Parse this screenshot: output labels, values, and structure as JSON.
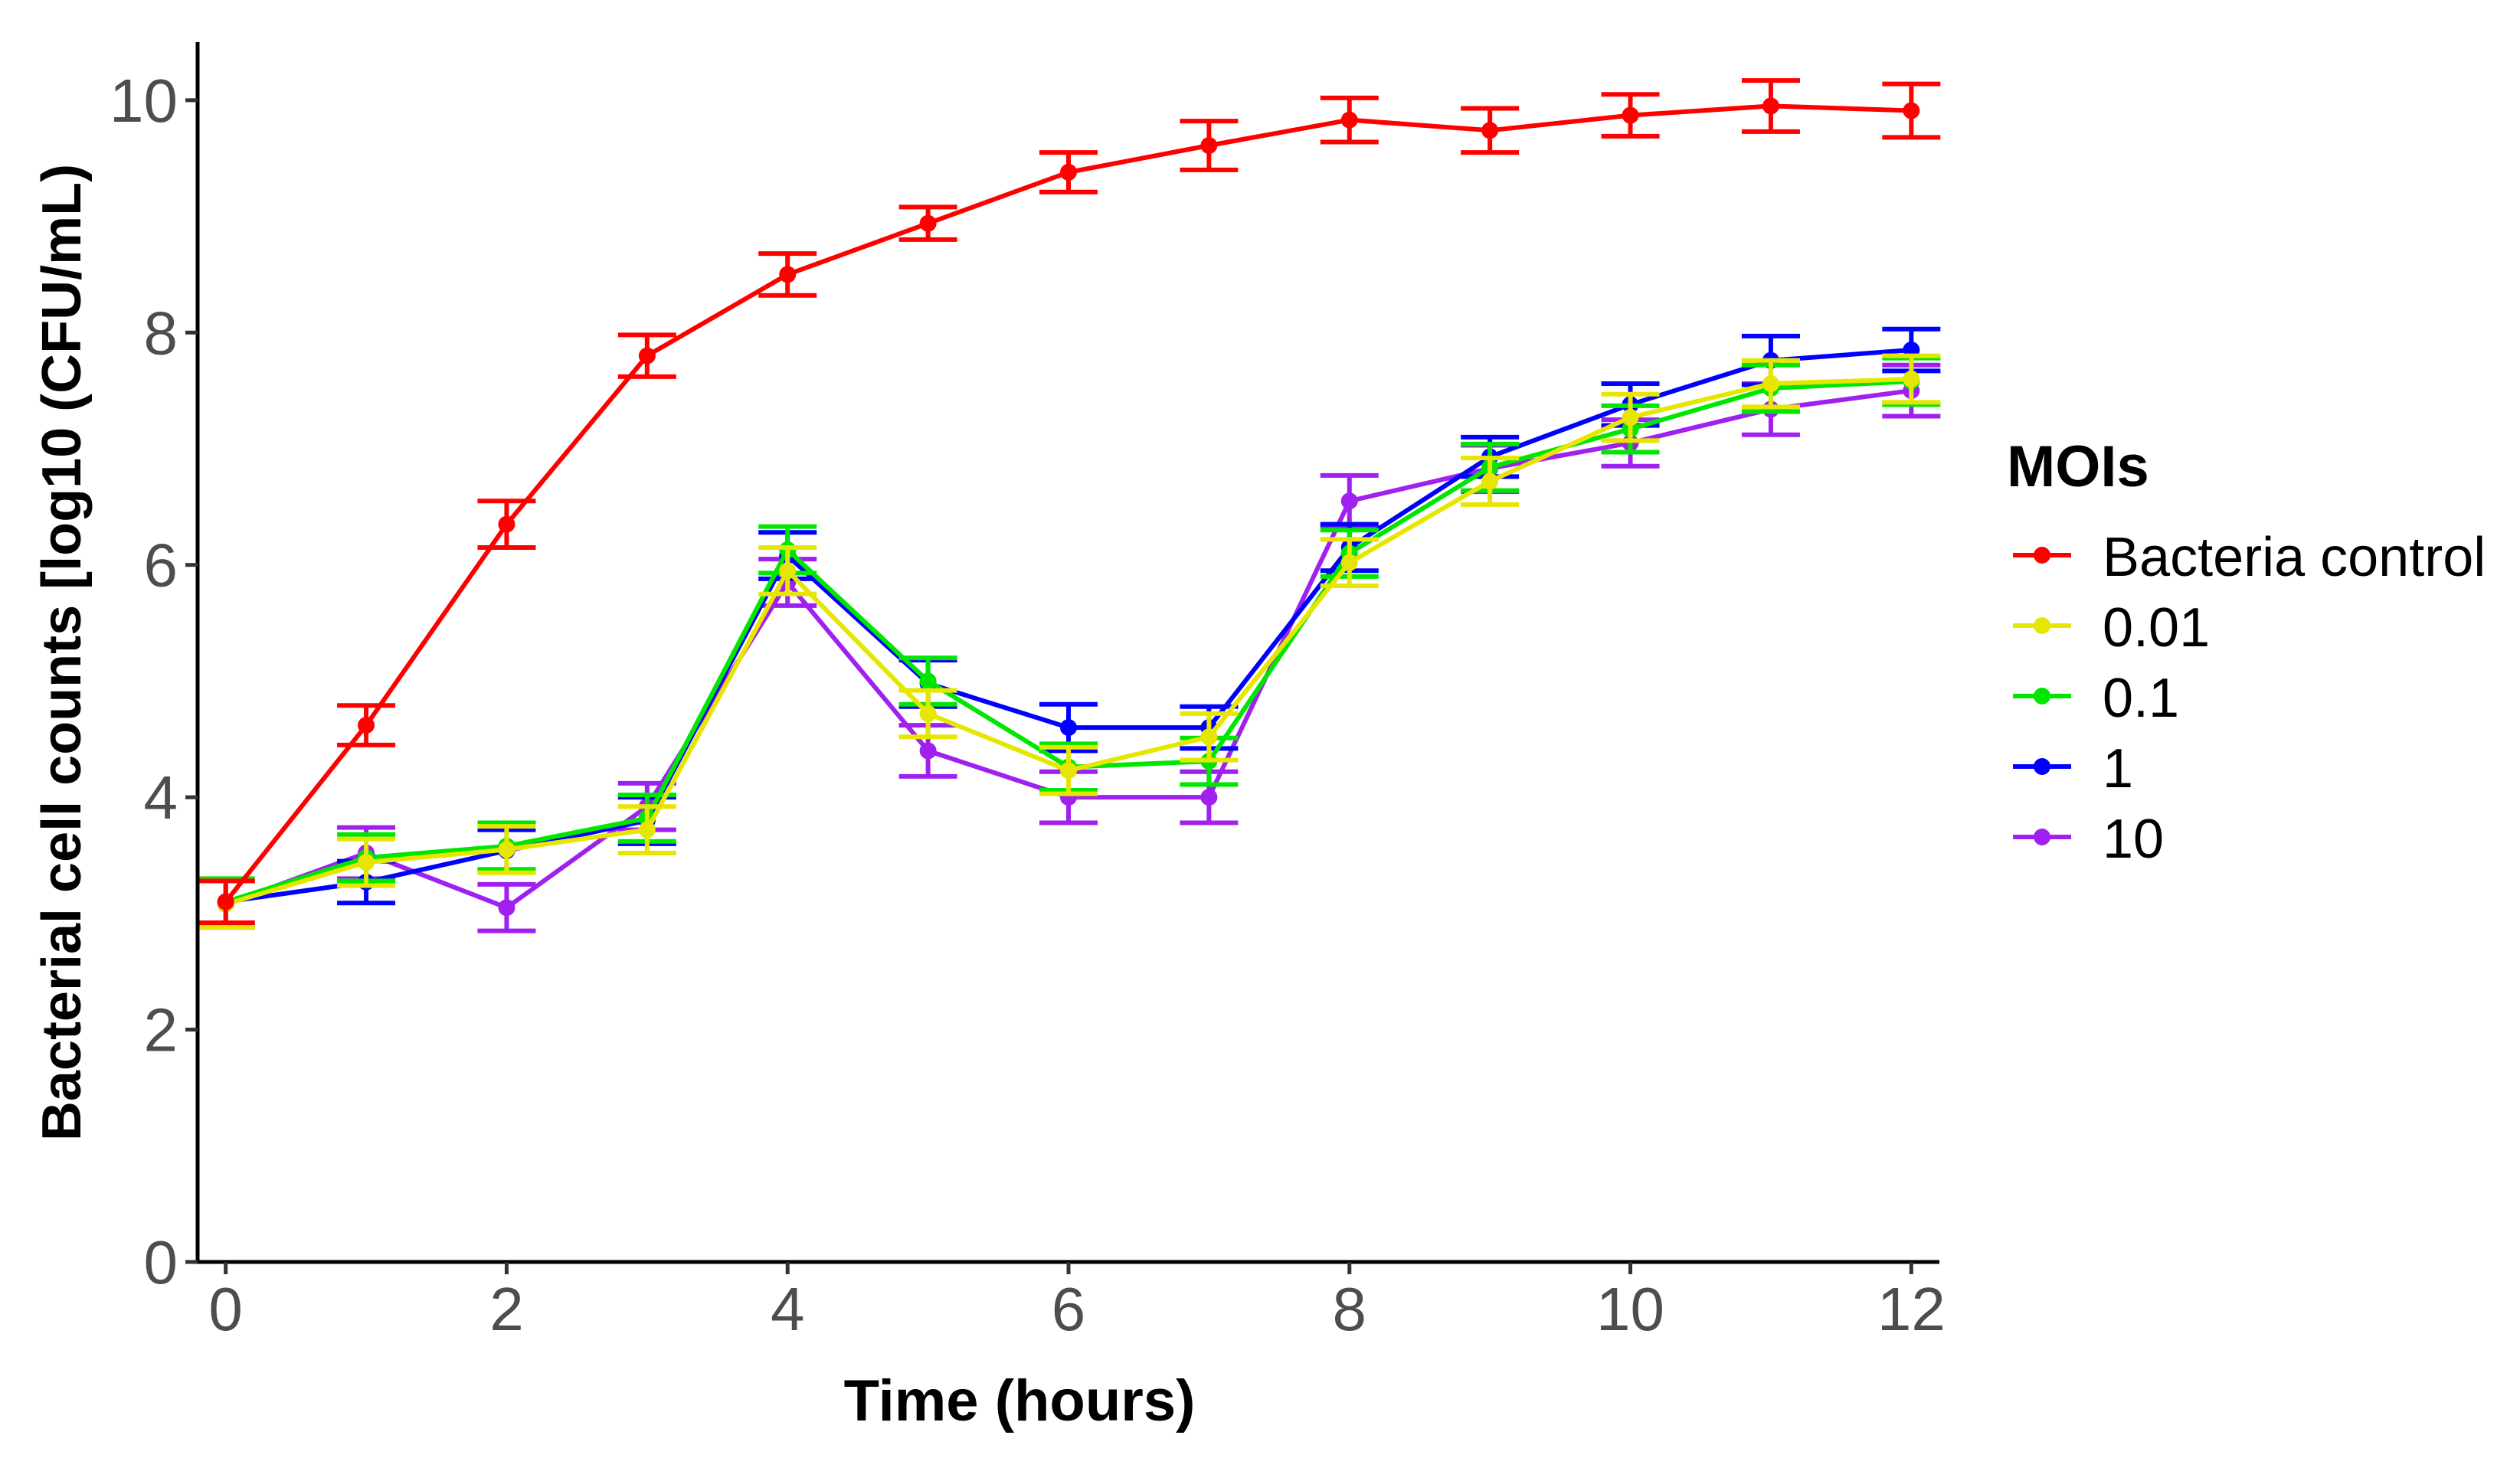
{
  "chart_data": {
    "type": "line",
    "title": "",
    "xlabel": "Time (hours)",
    "ylabel": "Bacterial cell counts [log10 (CFU/mL)",
    "xlim": [
      -0.2,
      12.2
    ],
    "ylim": [
      0,
      10.5
    ],
    "x_ticks": [
      "0",
      "2",
      "4",
      "6",
      "8",
      "10",
      "12"
    ],
    "y_ticks": [
      "0",
      "2",
      "4",
      "6",
      "8",
      "10"
    ],
    "grid": false,
    "legend": {
      "title": "MOIs",
      "position": "right"
    },
    "x": [
      0,
      1,
      2,
      3,
      4,
      5,
      6,
      7,
      8,
      9,
      10,
      11,
      12
    ],
    "series": [
      {
        "name": "Bacteria control",
        "color": "#FF0000",
        "values": [
          3.1,
          4.62,
          6.35,
          7.8,
          8.5,
          8.94,
          9.38,
          9.61,
          9.83,
          9.74,
          9.87,
          9.95,
          9.91
        ],
        "errors": [
          0.18,
          0.17,
          0.2,
          0.18,
          0.18,
          0.14,
          0.17,
          0.21,
          0.19,
          0.19,
          0.18,
          0.22,
          0.23
        ]
      },
      {
        "name": "0.01",
        "color": "#E6E600",
        "values": [
          3.08,
          3.44,
          3.55,
          3.72,
          5.95,
          4.72,
          4.23,
          4.52,
          6.02,
          6.72,
          7.27,
          7.56,
          7.6
        ],
        "errors": [
          0.2,
          0.2,
          0.2,
          0.2,
          0.2,
          0.2,
          0.2,
          0.2,
          0.2,
          0.2,
          0.2,
          0.2,
          0.2
        ]
      },
      {
        "name": "0.1",
        "color": "#00E600",
        "values": [
          3.1,
          3.48,
          3.58,
          3.82,
          6.13,
          5.0,
          4.26,
          4.31,
          6.1,
          6.84,
          7.17,
          7.52,
          7.58
        ],
        "errors": [
          0.2,
          0.2,
          0.2,
          0.2,
          0.2,
          0.2,
          0.2,
          0.2,
          0.2,
          0.2,
          0.2,
          0.2,
          0.2
        ]
      },
      {
        "name": "1",
        "color": "#0000FF",
        "values": [
          3.1,
          3.27,
          3.54,
          3.8,
          6.08,
          4.98,
          4.6,
          4.6,
          6.15,
          6.93,
          7.38,
          7.76,
          7.85
        ],
        "errors": [
          0.18,
          0.18,
          0.18,
          0.2,
          0.2,
          0.2,
          0.2,
          0.18,
          0.2,
          0.17,
          0.18,
          0.21,
          0.18
        ]
      },
      {
        "name": "10",
        "color": "#A020F0",
        "values": [
          3.08,
          3.52,
          3.05,
          3.92,
          5.85,
          4.4,
          4.0,
          4.0,
          6.55,
          6.83,
          7.05,
          7.34,
          7.5
        ],
        "errors": [
          0.2,
          0.22,
          0.2,
          0.2,
          0.2,
          0.22,
          0.22,
          0.22,
          0.22,
          0.2,
          0.2,
          0.22,
          0.22
        ]
      }
    ]
  }
}
